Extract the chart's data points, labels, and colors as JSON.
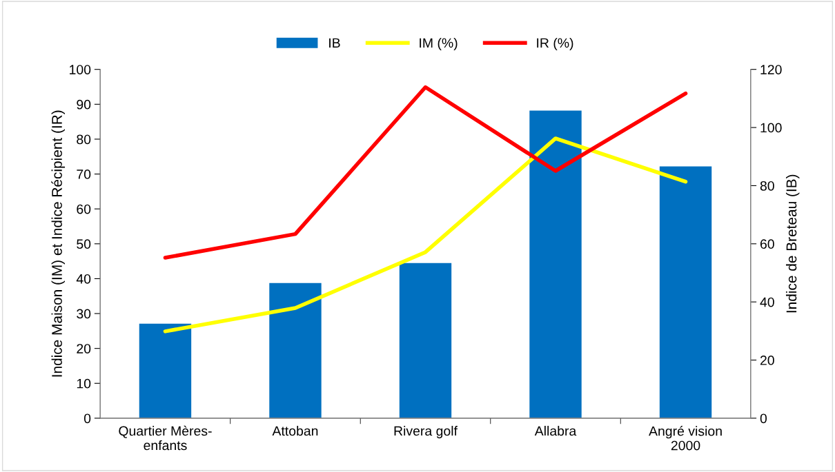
{
  "chart_data": {
    "type": "bar",
    "categories": [
      "Quartier Mères-\nenfants",
      "Attoban",
      "Rivera golf",
      "Allabra",
      "Angré vision\n2000"
    ],
    "ylabel": "Indice Maison (IM) et Indice Récipient (IR)",
    "y2label": "Indice de Breteau (IB)",
    "ylim": [
      0,
      100
    ],
    "yticks": [
      0,
      10,
      20,
      30,
      40,
      50,
      60,
      70,
      80,
      90,
      100
    ],
    "y2lim": [
      0,
      120
    ],
    "y2ticks": [
      0,
      20,
      40,
      60,
      80,
      100,
      120
    ],
    "grid": false,
    "legend": "top",
    "series": [
      {
        "name": "IB",
        "axis": "y2",
        "color": "#0070c0",
        "values": [
          32.5,
          46.5,
          53.4,
          105.8,
          86.6
        ]
      },
      {
        "name": "IM (%)",
        "type": "line",
        "axis": "y",
        "color": "#ffff00",
        "values": [
          24.9,
          31.6,
          47.6,
          80.2,
          67.8
        ]
      },
      {
        "name": "IR (%)",
        "type": "line",
        "axis": "y",
        "color": "#ff0000",
        "values": [
          46.0,
          52.8,
          94.9,
          70.9,
          93.1
        ]
      }
    ]
  }
}
